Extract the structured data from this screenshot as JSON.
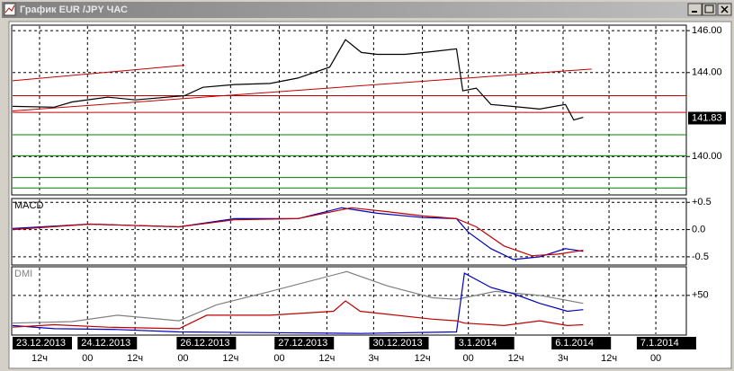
{
  "window": {
    "title": "График EUR /JPY ЧАС"
  },
  "chart_data": [
    {
      "type": "line",
      "xlim": [
        0,
        170
      ],
      "ylim": [
        138.17,
        146.26
      ],
      "yticks": [
        {
          "value": 146,
          "label": "146.00"
        },
        {
          "value": 144,
          "label": "144.00"
        },
        {
          "value": 140,
          "label": "140.00"
        }
      ],
      "last_price": {
        "value": 141.83,
        "label": "141.83"
      },
      "levels": [
        {
          "color": "#c00000",
          "value": 142.9
        },
        {
          "color": "#c00000",
          "value": 142.1
        },
        {
          "color": "#008000",
          "value": 141.04
        },
        {
          "color": "#008000",
          "value": 140.04
        },
        {
          "color": "#008000",
          "value": 139.0
        },
        {
          "color": "#008000",
          "value": 138.5
        }
      ],
      "trendlines": [
        {
          "color": "#c00000",
          "x": [
            0,
            43.4
          ],
          "values": [
            143.61,
            144.35
          ]
        },
        {
          "color": "#c00000",
          "x": [
            0,
            146.1
          ],
          "values": [
            142.17,
            144.17
          ]
        }
      ],
      "series": [
        {
          "color": "#000000",
          "x": [
            0,
            10.5,
            15,
            24,
            31,
            43.4,
            48,
            56,
            65,
            72,
            80,
            84,
            88,
            92,
            99,
            106,
            112,
            113.6,
            117,
            120.7,
            126,
            133,
            139.5,
            141.6,
            144
          ],
          "values": [
            142.39,
            142.35,
            142.6,
            142.83,
            142.7,
            142.9,
            143.3,
            143.43,
            143.48,
            143.74,
            144.26,
            145.57,
            144.96,
            144.87,
            144.87,
            145.0,
            145.13,
            143.13,
            143.26,
            142.48,
            142.39,
            142.26,
            142.48,
            141.74,
            141.87
          ]
        }
      ]
    },
    {
      "type": "line",
      "title": "MACD",
      "xlim": [
        0,
        170
      ],
      "ylim": [
        -0.65,
        0.57
      ],
      "yticks": [
        {
          "value": 0.5,
          "label": "+0.5"
        },
        {
          "value": 0,
          "label": "0.0"
        },
        {
          "value": -0.5,
          "label": "-0.5"
        }
      ],
      "series": [
        {
          "color": "#0000c0",
          "x": [
            0,
            19.5,
            42,
            56,
            72,
            83,
            92,
            103.6,
            112,
            115,
            120.7,
            126.4,
            133,
            139.5,
            144
          ],
          "values": [
            0.02,
            0.1,
            0.05,
            0.2,
            0.2,
            0.4,
            0.3,
            0.22,
            0.2,
            -0.05,
            -0.35,
            -0.55,
            -0.5,
            -0.35,
            -0.4
          ]
        },
        {
          "color": "#c00000",
          "x": [
            0,
            19.5,
            42,
            56,
            72,
            85.5,
            94.5,
            103.6,
            112,
            117,
            124,
            131,
            137.7,
            144
          ],
          "values": [
            0.0,
            0.1,
            0.05,
            0.18,
            0.2,
            0.4,
            0.33,
            0.25,
            0.2,
            0.05,
            -0.3,
            -0.48,
            -0.45,
            -0.38
          ]
        }
      ]
    },
    {
      "type": "line",
      "title": "DMI",
      "xlim": [
        0,
        170
      ],
      "ylim": [
        0,
        86
      ],
      "yticks": [
        {
          "value": 50,
          "label": "+50"
        }
      ],
      "xticks": [
        {
          "value": 0,
          "label": "23.12.2013"
        },
        {
          "value": 16.4,
          "label": "24.12.2013"
        },
        {
          "value": 41.4,
          "label": "26.12.2013"
        },
        {
          "value": 66.1,
          "label": "27.12.2013"
        },
        {
          "value": 90,
          "label": "30.12.2013"
        },
        {
          "value": 111.6,
          "label": "3.1.2014"
        },
        {
          "value": 136,
          "label": "6.1.2014"
        },
        {
          "value": 157.5,
          "label": "7.1.2014"
        }
      ],
      "hour_ticks": [
        {
          "value": 6.8,
          "label": "12ч"
        },
        {
          "value": 18.9,
          "label": "00"
        },
        {
          "value": 30.9,
          "label": "12ч"
        },
        {
          "value": 43,
          "label": "00"
        },
        {
          "value": 55,
          "label": "12ч"
        },
        {
          "value": 67.3,
          "label": "00"
        },
        {
          "value": 79.3,
          "label": "12ч"
        },
        {
          "value": 91.1,
          "label": "3ч"
        },
        {
          "value": 103.4,
          "label": "12ч"
        },
        {
          "value": 115,
          "label": "00"
        },
        {
          "value": 127,
          "label": "12ч"
        },
        {
          "value": 138.9,
          "label": "3ч"
        },
        {
          "value": 150.5,
          "label": "12ч"
        },
        {
          "value": 162.3,
          "label": "00"
        }
      ],
      "series": [
        {
          "color": "#808080",
          "x": [
            0,
            15,
            26.4,
            42,
            51.4,
            65,
            84.3,
            94.5,
            106,
            112,
            121.8,
            133,
            144
          ],
          "values": [
            15,
            17,
            25,
            18,
            38,
            55,
            80,
            62,
            47,
            45,
            55,
            50,
            40
          ]
        },
        {
          "color": "#0000c0",
          "x": [
            0,
            10.5,
            26.4,
            42,
            65,
            87.7,
            112,
            114,
            120.7,
            126.4,
            133,
            140,
            144
          ],
          "values": [
            12,
            8,
            7,
            4,
            3,
            2,
            4,
            78,
            60,
            52,
            40,
            30,
            32
          ]
        },
        {
          "color": "#c00000",
          "x": [
            0,
            10.5,
            24,
            42,
            49,
            65,
            81,
            84,
            87.7,
            106,
            112,
            114,
            124,
            133,
            140,
            144
          ],
          "values": [
            10,
            13,
            10,
            8,
            25,
            25,
            30,
            43,
            30,
            20,
            18,
            15,
            12,
            18,
            12,
            13
          ]
        }
      ]
    }
  ]
}
